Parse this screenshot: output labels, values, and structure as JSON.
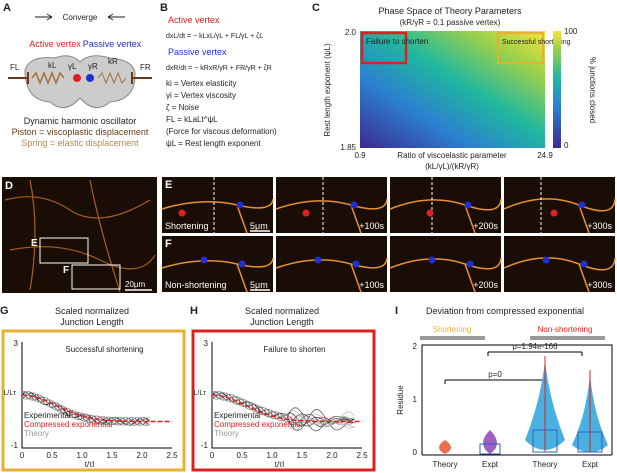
{
  "panelA": {
    "letter": "A",
    "converge": "Converge",
    "active": "Active vertex",
    "passive": "Passive vertex",
    "fl": "FL",
    "kl": "kL",
    "gl": "γL",
    "gr": "γR",
    "kr": "kR",
    "fr": "FR",
    "caption": [
      "Dynamic harmonic oscillator",
      "Piston = viscoplastic displacement",
      "Spring = elastic displacement"
    ]
  },
  "panelB": {
    "letter": "B",
    "active": "Active vertex",
    "eq1": "dxL/dt = − kLxL/γL + FL/γL + ζL",
    "passive": "Passive vertex",
    "eq2": "dxR/dt = − kRxR/γR + FR/γR + ζR",
    "defs": [
      "ki = Vertex elasticity",
      "γi = Vertex viscosity",
      "ζ = Noise",
      "FL = kLaLt^ψL",
      "(Force for viscous deformation)",
      "ψL = Rest length exponent"
    ]
  },
  "panelC": {
    "letter": "C",
    "title": "Phase Space of Theory Parameters",
    "subtitle": "(kR/γR = 0.1 passive vertex)",
    "fail": "Failure to shorten",
    "success": "Successful shortening",
    "ylabel": "Rest length exponent (ψL)",
    "yticks": [
      "2.0",
      "1.85"
    ],
    "xticks": [
      "0.9",
      "24.9"
    ],
    "xlabel": [
      "Ratio of viscoelastic parameter",
      "(kL/γL)/(kR/γR)"
    ],
    "cbticks": [
      "100",
      "0"
    ],
    "cblabel": "% junctions closed"
  },
  "panelD": {
    "letter": "D",
    "boxE": "E",
    "boxF": "F",
    "scale": "20μm"
  },
  "panelE": {
    "letter": "E",
    "label": "Shortening",
    "scale": "5μm",
    "times": [
      "+100s",
      "+200s",
      "+300s"
    ]
  },
  "panelF": {
    "letter": "F",
    "label": "Non-shortening",
    "scale": "5μm",
    "times": [
      "+100s",
      "+200s",
      "+300s"
    ]
  },
  "panelG": {
    "letter": "G",
    "title": [
      "Scaled normalized",
      "Junction Length"
    ],
    "note": "Successful shortening",
    "yticks": [
      "3",
      "-1"
    ],
    "ylabel": "L/Lτ",
    "xticks": [
      "0",
      "0.5",
      "1.0",
      "1.5",
      "2.0",
      "2.5"
    ],
    "xlabel": "t/τl",
    "legend": [
      "Experimental",
      "Compressed exponential",
      "Theory"
    ]
  },
  "panelH": {
    "letter": "H",
    "title": [
      "Scaled normalized",
      "Junction Length"
    ],
    "note": "Failure to shorten",
    "yticks": [
      "3",
      "-1"
    ],
    "ylabel": "L/Lτ",
    "xticks": [
      "0",
      "0.5",
      "1.0",
      "1.5",
      "2.0",
      "2.5"
    ],
    "xlabel": "t/τl",
    "legend": [
      "Experimental",
      "Compressed exponential",
      "Theory"
    ]
  },
  "panelI": {
    "letter": "I",
    "title": "Deviation from compressed exponential",
    "groups": [
      "Shortening",
      "Non-shortening"
    ],
    "p1": "p=1.94e-166",
    "p2": "p=0",
    "ylabel": "Residue",
    "yticks": [
      "2",
      "1",
      "0"
    ],
    "categories": [
      "Theory",
      "Expt",
      "Theory",
      "Expt"
    ]
  }
}
